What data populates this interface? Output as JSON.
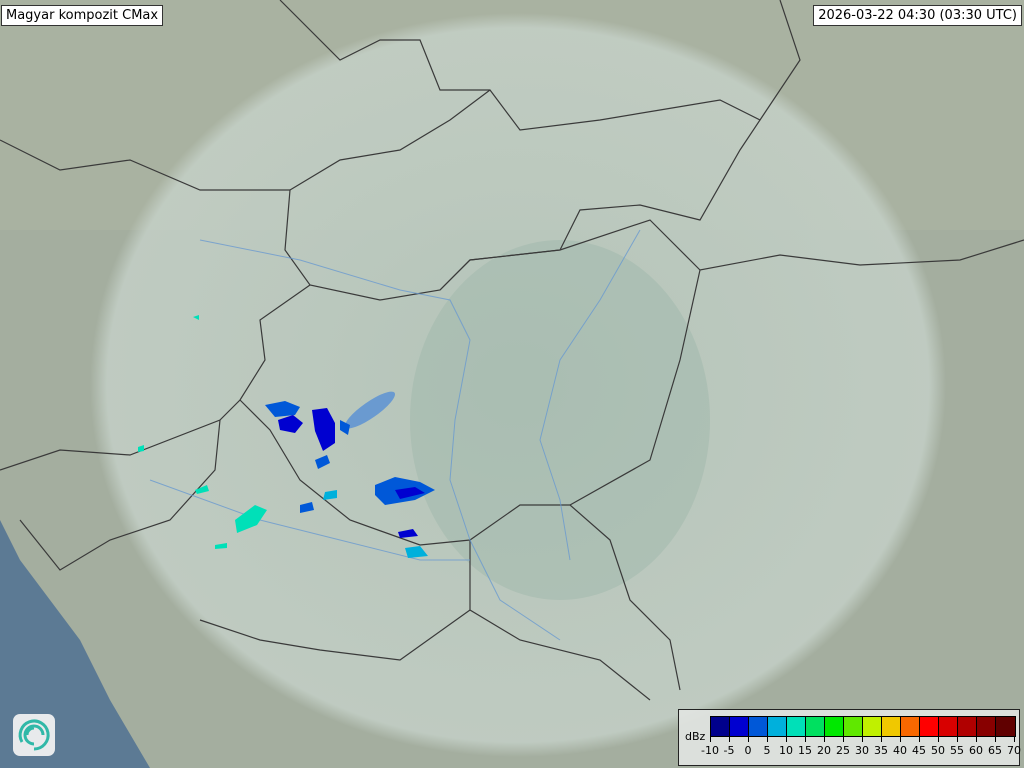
{
  "title": "Magyar kompozit  CMax",
  "timestamp": "2026-03-22 04:30 (03:30 UTC)",
  "legend": {
    "unit": "dBz",
    "ticks": [
      "-10",
      "-5",
      "0",
      "5",
      "10",
      "15",
      "20",
      "25",
      "30",
      "35",
      "40",
      "45",
      "50",
      "55",
      "60",
      "65",
      "70"
    ],
    "colors": [
      "#00008c",
      "#0000d0",
      "#0058d8",
      "#00b0dc",
      "#00e0b8",
      "#00e060",
      "#00e800",
      "#60e800",
      "#c0f000",
      "#f0c800",
      "#f86800",
      "#ff0000",
      "#d80000",
      "#b00000",
      "#880000",
      "#600000"
    ]
  },
  "logo": {
    "icon": "swirl-logo-icon"
  },
  "colors": {
    "land": "#9aa79a",
    "radar_coverage": "#c4d2cc",
    "sea": "#5c7a94",
    "border": "#3a3a3a",
    "river": "#6a9ad0"
  }
}
